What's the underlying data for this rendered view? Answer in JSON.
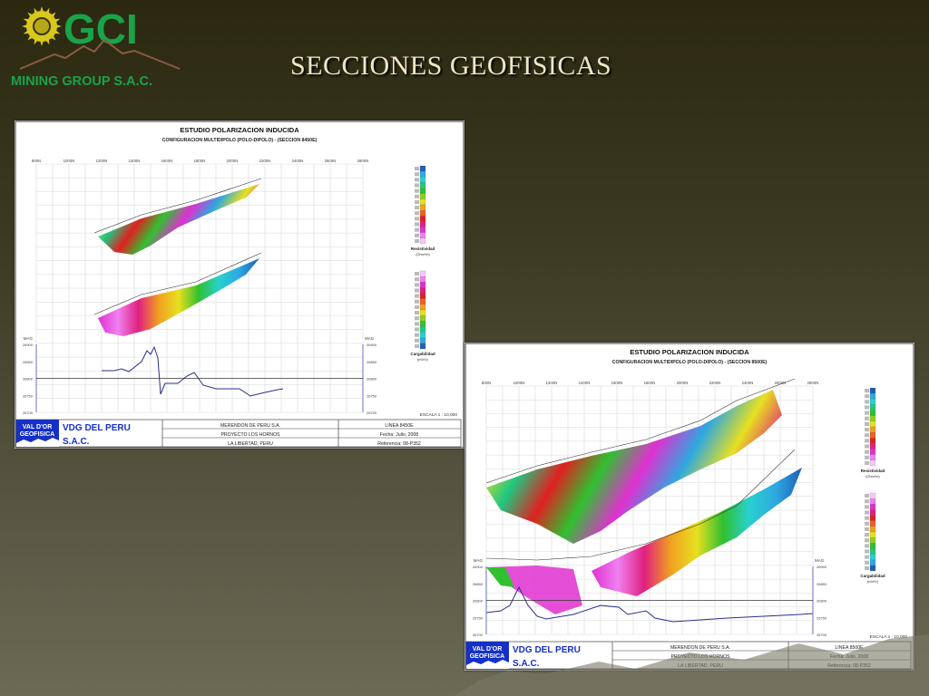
{
  "logo": {
    "brand": "GCI",
    "subtitle": "MINING GROUP S.A.C.",
    "colors": {
      "green": "#1aa34a",
      "sun": "#d8c81c",
      "mountain": "#8a5a40"
    }
  },
  "slide_title": "SECCIONES GEOFISICAS",
  "panels": [
    {
      "title": "ESTUDIO POLARIZACION INDUCIDA",
      "subtitle": "CONFIGURACION MULTIDIPOLO (POLO-DIPOLO) - (SECCION 8450E)",
      "x_ticks": [
        "800N",
        "1000N",
        "1200N",
        "1400N",
        "1600N",
        "1800N",
        "2000N",
        "2200N",
        "2400N",
        "2600N",
        "2800N"
      ],
      "legend_resistivity": {
        "label": "Resistividad",
        "unit": "(Ohm*m)"
      },
      "legend_chargeability": {
        "label": "Cargabilidad",
        "unit": "(mV/V)"
      },
      "mag_label": "MAG",
      "mag_ticks": [
        "26900",
        "26850",
        "26800",
        "26750",
        "26700"
      ],
      "scale": "ESCALA 1 : 10,000",
      "footer": {
        "company_logo": "VAL D'OR GEOFISICA",
        "company": [
          "VDG DEL PERU",
          "S.A.C."
        ],
        "client": [
          "MERENDON DE PERU S.A.",
          "PROYECTO LOS HORNOS",
          "LA LIBERTAD, PERU"
        ],
        "info": [
          "LINEA 8450E",
          "Fecha: Julio, 2008",
          "Referencia: 08-P352"
        ]
      }
    },
    {
      "title": "ESTUDIO POLARIZACION INDUCIDA",
      "subtitle": "CONFIGURACION MULTIDIPOLO (POLO-DIPOLO) - (SECCION 8500E)",
      "x_ticks": [
        "800N",
        "1000N",
        "1200N",
        "1400N",
        "1600N",
        "1800N",
        "2000N",
        "2200N",
        "2400N",
        "2600N",
        "2800N"
      ],
      "legend_resistivity": {
        "label": "Resistividad",
        "unit": "(Ohm*m)"
      },
      "legend_chargeability": {
        "label": "Cargabilidad",
        "unit": "(mV/V)"
      },
      "mag_label": "MAG",
      "mag_ticks": [
        "26900",
        "26850",
        "26800",
        "26750",
        "26700"
      ],
      "scale": "ESCALA 1 : 10,000",
      "footer": {
        "company_logo": "VAL D'OR GEOFISICA",
        "company": [
          "VDG DEL PERU",
          "S.A.C."
        ],
        "client": [
          "MERENDON DE PERU S.A.",
          "PROYECTO LOS HORNOS",
          "LA LIBERTAD, PERU"
        ],
        "info": [
          "LINEA 8500E",
          "Fecha: Julio, 2008",
          "Referencia: 08-P352"
        ]
      }
    }
  ],
  "colors": {
    "footer_blue": "#1530c8",
    "mag_line": "#2a2f8a",
    "grid": "#c8c8c8"
  },
  "color_scale": [
    "#1e5fb8",
    "#2ea8e0",
    "#28d0d0",
    "#20c880",
    "#30c030",
    "#90d020",
    "#e8e020",
    "#f0a020",
    "#f06020",
    "#e02020",
    "#e02080",
    "#e030d0",
    "#f080f0",
    "#f8c8f8"
  ]
}
